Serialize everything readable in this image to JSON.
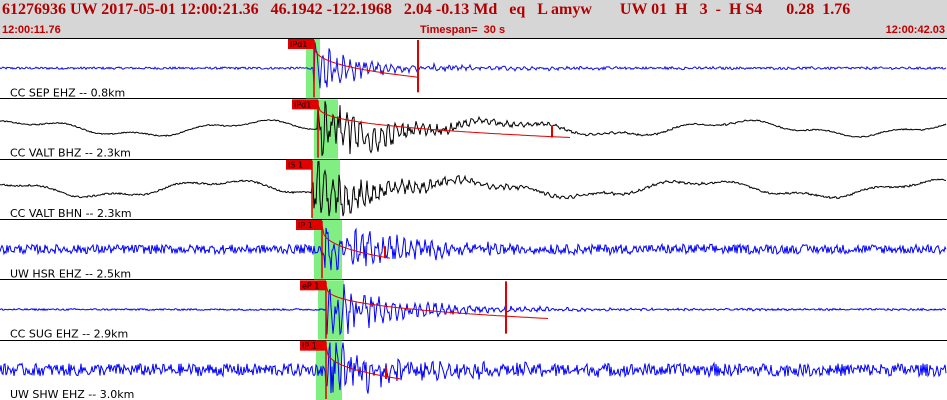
{
  "header": {
    "title": "61276936 UW 2017-05-01 12:00:21.36   46.1942 -122.1968   2.04 -0.13 Md   eq   L amyw       UW 01  H   3  -  H S4      0.28  1.76",
    "start_time": "12:00:11.76",
    "timespan": "Timespan=  30 s",
    "end_time": "12:00:42.03"
  },
  "colors": {
    "header_bg": "#d6d6d6",
    "header_text": "#b00000",
    "trace_blue": "#0000ff",
    "trace_black": "#000000",
    "pick_red": "#e00000",
    "highlight_green": "#80ee80"
  },
  "traces": [
    {
      "label": "CC SEP EHZ -- 0.8km",
      "pick": "IPd1",
      "color": "#1010e0",
      "amp": 0.35,
      "noise": 0.04,
      "lf": 0.0
    },
    {
      "label": "CC VALT BHZ -- 2.3km",
      "pick": "IPd1",
      "color": "#000000",
      "amp": 0.5,
      "noise": 0.02,
      "lf": 0.22
    },
    {
      "label": "CC VALT BHN -- 2.3km",
      "pick": "IS 1",
      "color": "#000000",
      "amp": 0.45,
      "noise": 0.03,
      "lf": 0.25
    },
    {
      "label": "UW HSR EHZ -- 2.5km",
      "pick": "IP 1",
      "color": "#0000ff",
      "amp": 0.45,
      "noise": 0.16,
      "lf": 0.0
    },
    {
      "label": "CC SUG EHZ -- 2.9km",
      "pick": "eP 1",
      "color": "#0000ff",
      "amp": 0.45,
      "noise": 0.03,
      "lf": 0.0
    },
    {
      "label": "UW SHW EHZ -- 3.0km",
      "pick": "IP 1",
      "color": "#0000ff",
      "amp": 0.45,
      "noise": 0.22,
      "lf": 0.0
    }
  ]
}
